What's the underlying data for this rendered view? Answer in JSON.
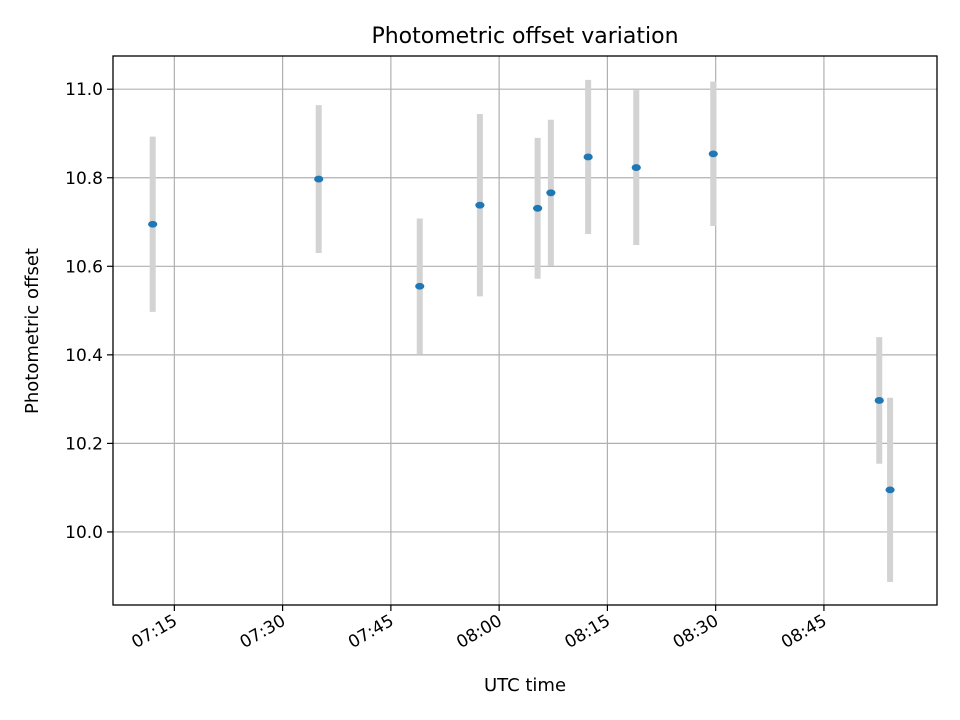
{
  "chart_data": {
    "type": "scatter",
    "title": "Photometric offset variation",
    "xlabel": "UTC time",
    "ylabel": "Photometric offset",
    "x_ticks": [
      "07:15",
      "07:30",
      "07:45",
      "08:00",
      "08:15",
      "08:30",
      "08:45"
    ],
    "y_ticks": [
      "10.0",
      "10.2",
      "10.4",
      "10.6",
      "10.8",
      "11.0"
    ],
    "xlim": [
      "07:06:30",
      "09:00:40"
    ],
    "ylim": [
      9.835,
      11.075
    ],
    "grid": true,
    "series": [
      {
        "color": "#1f77b4",
        "error_color": "#d3d3d3",
        "points": [
          {
            "x": "07:12:00",
            "y": 10.695,
            "yerr": 0.198
          },
          {
            "x": "07:35:00",
            "y": 10.797,
            "yerr": 0.167
          },
          {
            "x": "07:49:00",
            "y": 10.555,
            "yerr": 0.153
          },
          {
            "x": "07:57:20",
            "y": 10.738,
            "yerr": 0.206
          },
          {
            "x": "08:05:20",
            "y": 10.731,
            "yerr": 0.159
          },
          {
            "x": "08:07:10",
            "y": 10.766,
            "yerr": 0.165
          },
          {
            "x": "08:12:20",
            "y": 10.847,
            "yerr": 0.174
          },
          {
            "x": "08:19:00",
            "y": 10.823,
            "yerr": 0.175
          },
          {
            "x": "08:29:40",
            "y": 10.854,
            "yerr": 0.163
          },
          {
            "x": "08:52:40",
            "y": 10.297,
            "yerr": 0.143
          },
          {
            "x": "08:54:10",
            "y": 10.095,
            "yerr": 0.208
          }
        ]
      }
    ]
  }
}
